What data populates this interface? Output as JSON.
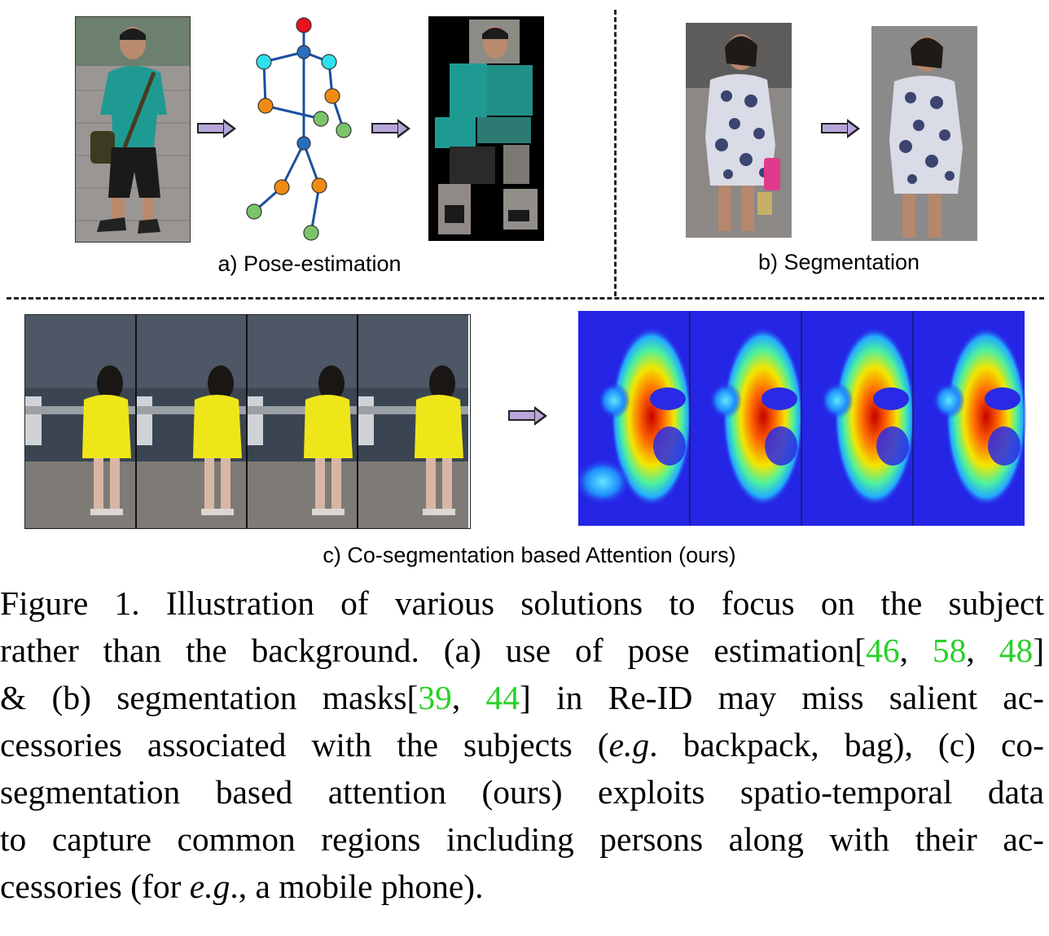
{
  "subfigures": {
    "a_label": "a) Pose-estimation",
    "b_label": "b) Segmentation",
    "c_label": "c) Co-segmentation based Attention (ours)"
  },
  "caption": {
    "l1": "Figure 1. Illustration of various solutions to focus on the subject",
    "l2_pre": "rather than the background. (a) use of pose estimation[",
    "ref46": "46",
    "sep1": ", ",
    "ref58": "58",
    "sep2": ", ",
    "ref48": "48",
    "l2_post": "]",
    "l3_pre": "& (b) segmentation masks[",
    "ref39": "39",
    "sep3": ", ",
    "ref44": "44",
    "l3_post": "] in Re-ID may miss salient ac-",
    "l4_pre": "cessories associated with the subjects (",
    "eg1": "e.g",
    "l4_post": ". backpack, bag), (c) co-",
    "l5": "segmentation based attention (ours) exploits spatio-temporal data",
    "l6": "to capture common regions including persons along with their ac-",
    "l7_pre": "cessories (for ",
    "eg2": "e.g",
    "l7_post": "., a mobile phone)."
  },
  "colors": {
    "reference_link": "#27d127",
    "arrow_fill": "#b7a6d9",
    "pose_head": "#e8121e",
    "pose_joint_blue": "#2a6fbf",
    "pose_joint_cyan": "#2fe0f0",
    "pose_joint_orange": "#f08a14",
    "pose_joint_green": "#7bc46a"
  }
}
